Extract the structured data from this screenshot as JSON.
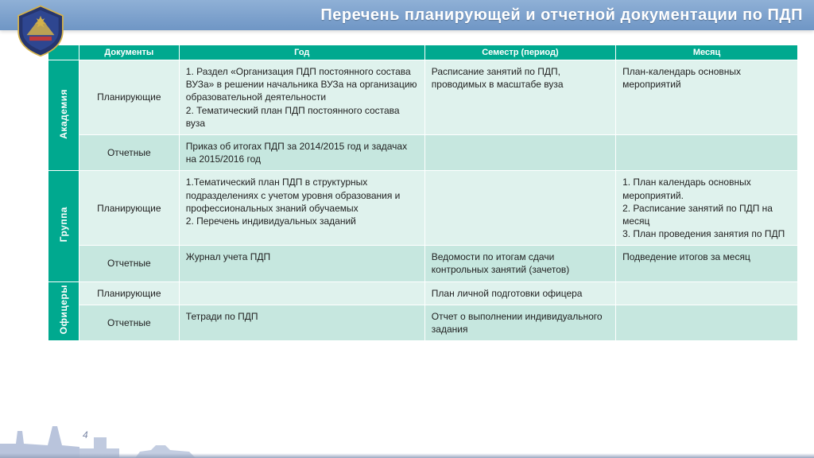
{
  "title": "Перечень планирующей и отчетной документации по ПДП",
  "columns": {
    "doc": "Документы",
    "year": "Год",
    "sem": "Семестр (период)",
    "month": "Месяц"
  },
  "categories": [
    {
      "label": "Академия",
      "rows": [
        {
          "shade": "light",
          "doc": "Планирующие",
          "year": "1. Раздел «Организация ПДП постоянного состава ВУЗа» в решении начальника ВУЗа на организацию образовательной деятельности\n2. Тематический план ПДП постоянного состава вуза",
          "sem": "Расписание занятий по ПДП, проводимых в масштабе вуза",
          "month": "План-календарь основных мероприятий"
        },
        {
          "shade": "dark",
          "doc": "Отчетные",
          "year": "Приказ об итогах ПДП за 2014/2015 год и задачах на 2015/2016 год",
          "sem": "",
          "month": ""
        }
      ]
    },
    {
      "label": "Группа",
      "rows": [
        {
          "shade": "light",
          "doc": "Планирующие",
          "year": "1.Тематический план ПДП в структурных подразделениях с учетом уровня образования и профессиональных знаний обучаемых\n2. Перечень индивидуальных заданий",
          "sem": "",
          "month": "1. План календарь основных мероприятий.\n2. Расписание занятий по ПДП на месяц\n3. План проведения занятия по ПДП"
        },
        {
          "shade": "dark",
          "doc": "Отчетные",
          "year": "Журнал учета ПДП",
          "sem": "Ведомости по итогам сдачи контрольных занятий (зачетов)",
          "month": "Подведение итогов за месяц"
        }
      ]
    },
    {
      "label": "Офицеры",
      "rows": [
        {
          "shade": "light",
          "doc": "Планирующие",
          "year": "",
          "sem": "План личной подготовки офицера",
          "month": ""
        },
        {
          "shade": "dark",
          "doc": "Отчетные",
          "year": "Тетради по ПДП",
          "sem": "Отчет о выполнении индивидуального задания",
          "month": ""
        }
      ]
    }
  ],
  "page": "4",
  "colors": {
    "teal": "#00a98f",
    "rowLight": "#dff2ed",
    "rowDark": "#c6e7df",
    "headerGradTop": "#8fb0d6",
    "headerGradBot": "#6f96c5",
    "silhouette": "#b9c4dc"
  }
}
